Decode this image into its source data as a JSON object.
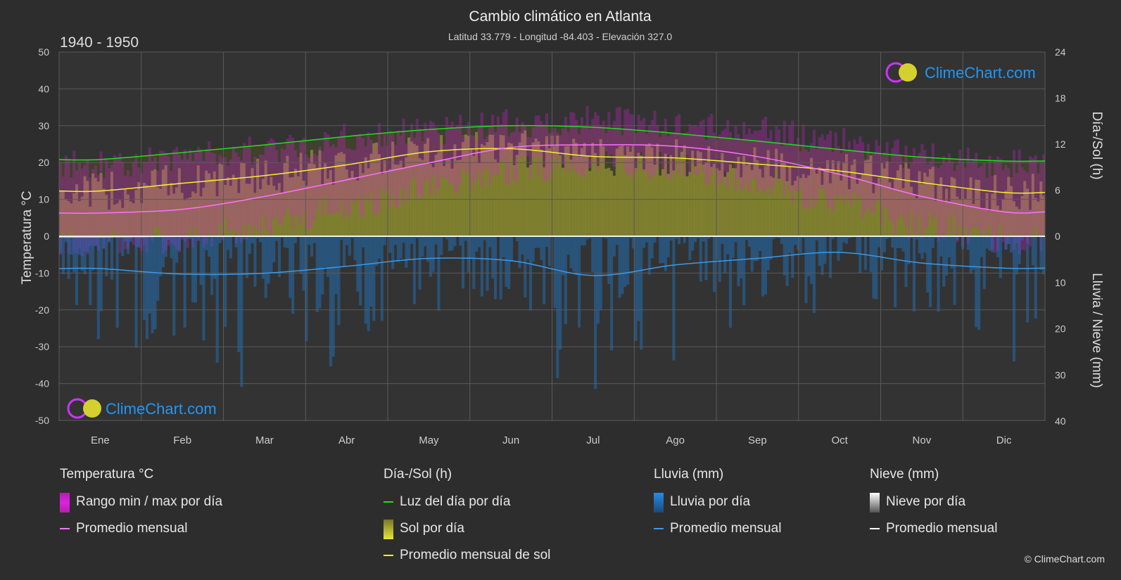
{
  "header": {
    "title": "Cambio climático en Atlanta",
    "subtitle": "Latitud 33.779 - Longitud -84.403 - Elevación 327.0",
    "period": "1940 - 1950"
  },
  "brand": {
    "name": "ClimeChart.com",
    "copyright": "© ClimeChart.com"
  },
  "legend": {
    "temperature": {
      "title": "Temperatura °C",
      "range": "Rango min / max por día",
      "mean": "Promedio mensual"
    },
    "sun": {
      "title": "Día-/Sol (h)",
      "daylight": "Luz del día por día",
      "sun_per_day": "Sol por día",
      "sun_mean": "Promedio mensual de sol"
    },
    "rain": {
      "title": "Lluvia (mm)",
      "per_day": "Lluvia por día",
      "mean": "Promedio mensual"
    },
    "snow": {
      "title": "Nieve (mm)",
      "per_day": "Nieve por día",
      "mean": "Promedio mensual"
    }
  },
  "colors": {
    "background": "#2d2d2d",
    "temp_range": "#e020e0",
    "temp_mean": "#ff70ff",
    "daylight": "#22dd22",
    "sunshine": "#c8c832",
    "sun_mean": "#f2f230",
    "rain": "#1e78c8",
    "rain_mean": "#3a9ae8",
    "snow": "#ffffff",
    "grid": "#5a5a5a",
    "brand_blue": "#2196f3"
  },
  "chart_data": {
    "type": "area",
    "months": [
      "Ene",
      "Feb",
      "Mar",
      "Abr",
      "May",
      "Jun",
      "Jul",
      "Ago",
      "Sep",
      "Oct",
      "Nov",
      "Dic"
    ],
    "axes": {
      "left": {
        "label": "Temperatura °C",
        "min": -50,
        "max": 50,
        "ticks": [
          50,
          40,
          30,
          20,
          10,
          0,
          -10,
          -20,
          -30,
          -40,
          -50
        ]
      },
      "right_top": {
        "label": "Día-/Sol (h)",
        "min": 0,
        "max": 24,
        "ticks": [
          24,
          18,
          12,
          6,
          0
        ]
      },
      "right_bottom": {
        "label": "Lluvia / Nieve (mm)",
        "min": 0,
        "max": 40,
        "ticks": [
          0,
          10,
          20,
          30,
          40
        ]
      }
    },
    "series": [
      {
        "name": "Luz del día por día",
        "unit": "h",
        "values": [
          10.0,
          10.9,
          11.9,
          13.0,
          13.9,
          14.4,
          14.2,
          13.4,
          12.4,
          11.3,
          10.3,
          9.8
        ]
      },
      {
        "name": "Promedio mensual de sol",
        "unit": "h",
        "values": [
          5.9,
          6.9,
          7.9,
          9.3,
          11.0,
          11.4,
          10.4,
          10.2,
          9.4,
          8.5,
          7.0,
          5.7
        ]
      },
      {
        "name": "Promedio mensual",
        "unit": "°C",
        "values": [
          6.3,
          7.3,
          10.8,
          15.3,
          19.9,
          24.1,
          24.8,
          24.4,
          21.6,
          16.8,
          10.8,
          6.6
        ]
      },
      {
        "name": "Lluvia promedio mensual",
        "unit": "mm",
        "values": [
          7.0,
          8.2,
          8.0,
          6.5,
          4.8,
          5.3,
          8.5,
          6.2,
          4.8,
          3.5,
          5.8,
          6.9
        ]
      },
      {
        "name": "Nieve promedio mensual",
        "unit": "mm",
        "values": [
          0.15,
          0.05,
          0.0,
          0.0,
          0.0,
          0.0,
          0.0,
          0.0,
          0.0,
          0.0,
          0.0,
          0.05
        ]
      },
      {
        "name": "Rango max (aprox.)",
        "unit": "°C",
        "values": [
          18,
          20,
          22,
          25,
          27,
          29,
          30,
          29,
          27,
          24,
          20,
          18
        ]
      },
      {
        "name": "Rango min (aprox.)",
        "unit": "°C",
        "values": [
          -2,
          -1,
          3,
          8,
          13,
          18,
          20,
          19,
          15,
          9,
          3,
          -1
        ]
      }
    ],
    "grid": true
  }
}
